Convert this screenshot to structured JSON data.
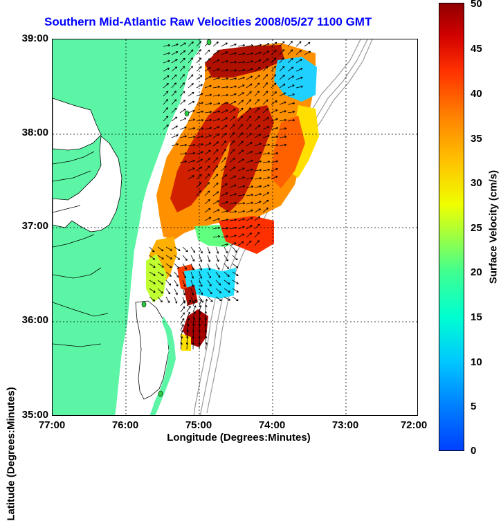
{
  "title": "Southern Mid-Atlantic Raw Velocities 2008/05/27 1100 GMT",
  "axes": {
    "xlabel": "Longitude (Degrees:Minutes)",
    "ylabel": "Latitude (Degrees:Minutes)",
    "x_ticks": [
      "77:00",
      "76:00",
      "75:00",
      "74:00",
      "73:00",
      "72:00"
    ],
    "y_ticks": [
      "39:00",
      "38:00",
      "37:00",
      "36:00",
      "35:00"
    ]
  },
  "colorbar": {
    "label": "Surface Velocity (cm/s)",
    "ticks": [
      "50",
      "45",
      "40",
      "35",
      "30",
      "25",
      "20",
      "15",
      "10",
      "5",
      "0"
    ],
    "min": 0,
    "max": 50
  },
  "colors": {
    "land": "#5cf5a6",
    "title": "#0000ff",
    "grid": "#000000",
    "bathymetry": "#9a9a9a",
    "station": "#2ecc40"
  }
}
